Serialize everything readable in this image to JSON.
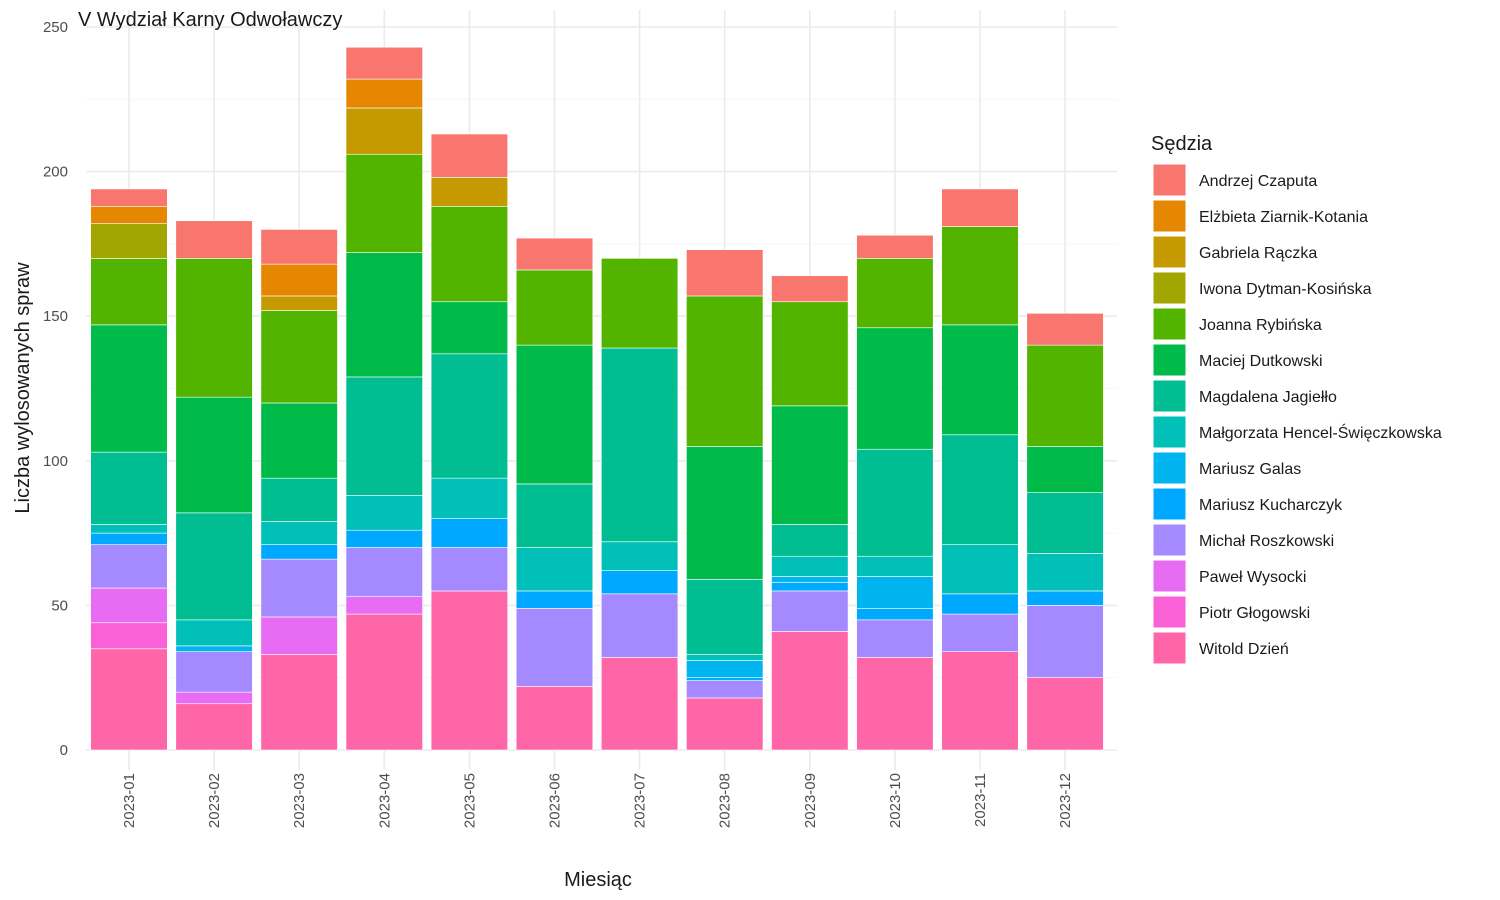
{
  "chart_data": {
    "type": "bar",
    "stacked": true,
    "title": "V Wydział Karny Odwoławczy",
    "xlabel": "Miesiąc",
    "ylabel": "Liczba wylosowanych spraw",
    "ylim": [
      0,
      250
    ],
    "yticks": [
      0,
      50,
      100,
      150,
      200,
      250
    ],
    "grid": true,
    "legend_title": "Sędzia",
    "legend_position": "right",
    "categories": [
      "2023-01",
      "2023-02",
      "2023-03",
      "2023-04",
      "2023-05",
      "2023-06",
      "2023-07",
      "2023-08",
      "2023-09",
      "2023-10",
      "2023-11",
      "2023-12"
    ],
    "series": [
      {
        "name": "Witold Dzień",
        "color": "#FF66A8",
        "values": [
          35,
          16,
          33,
          47,
          55,
          22,
          32,
          18,
          41,
          32,
          34,
          25
        ]
      },
      {
        "name": "Piotr Głogowski",
        "color": "#FB61D7",
        "values": [
          9,
          0,
          0,
          0,
          0,
          0,
          0,
          0,
          0,
          0,
          0,
          0
        ]
      },
      {
        "name": "Paweł Wysocki",
        "color": "#E76BF3",
        "values": [
          12,
          4,
          13,
          6,
          0,
          0,
          0,
          0,
          0,
          0,
          0,
          0
        ]
      },
      {
        "name": "Michał Roszkowski",
        "color": "#A58AFF",
        "values": [
          15,
          14,
          20,
          17,
          15,
          27,
          22,
          6,
          14,
          13,
          13,
          25
        ]
      },
      {
        "name": "Mariusz Kucharczyk",
        "color": "#00A9FF",
        "values": [
          4,
          0,
          5,
          6,
          10,
          6,
          8,
          1,
          3,
          4,
          7,
          5
        ]
      },
      {
        "name": "Mariusz Galas",
        "color": "#00B4EF",
        "values": [
          0,
          2,
          0,
          0,
          0,
          0,
          0,
          6,
          2,
          11,
          0,
          0
        ]
      },
      {
        "name": "Małgorzata Hencel-Święczkowska",
        "color": "#00C0B8",
        "values": [
          3,
          9,
          8,
          12,
          14,
          15,
          10,
          2,
          7,
          7,
          17,
          13
        ]
      },
      {
        "name": "Magdalena Jagiełło",
        "color": "#00BE92",
        "values": [
          25,
          37,
          15,
          41,
          43,
          22,
          67,
          26,
          11,
          37,
          38,
          21
        ]
      },
      {
        "name": "Maciej Dutkowski",
        "color": "#00BA4A",
        "values": [
          44,
          40,
          26,
          43,
          18,
          48,
          0,
          46,
          41,
          42,
          38,
          16
        ]
      },
      {
        "name": "Joanna Rybińska",
        "color": "#53B400",
        "values": [
          23,
          48,
          32,
          34,
          33,
          26,
          31,
          52,
          36,
          24,
          34,
          35
        ]
      },
      {
        "name": "Iwona Dytman-Kosińska",
        "color": "#A3A500",
        "values": [
          12,
          0,
          0,
          0,
          0,
          0,
          0,
          0,
          0,
          0,
          0,
          0
        ]
      },
      {
        "name": "Gabriela Rączka",
        "color": "#C49A00",
        "values": [
          0,
          0,
          5,
          16,
          10,
          0,
          0,
          0,
          0,
          0,
          0,
          0
        ]
      },
      {
        "name": "Elżbieta Ziarnik-Kotania",
        "color": "#E58700",
        "values": [
          6,
          0,
          11,
          10,
          0,
          0,
          0,
          0,
          0,
          0,
          0,
          0
        ]
      },
      {
        "name": "Andrzej Czaputa",
        "color": "#F8766D",
        "values": [
          6,
          13,
          12,
          11,
          15,
          11,
          0,
          16,
          9,
          8,
          13,
          11
        ]
      }
    ]
  }
}
